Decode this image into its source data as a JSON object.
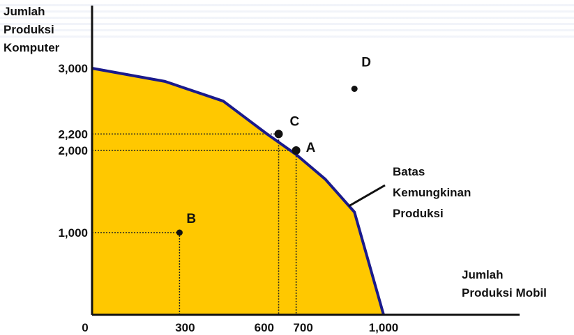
{
  "chart_data": {
    "type": "line",
    "ylabel_lines": [
      "Jumlah",
      "Produksi",
      "Komputer"
    ],
    "xlabel_lines": [
      "Jumlah",
      "Produksi Mobil"
    ],
    "curve_label_lines": [
      "Batas",
      "Kemungkinan",
      "Produksi"
    ],
    "x_ticks": [
      "0",
      "300",
      "600",
      "700",
      "1,000"
    ],
    "y_ticks": [
      "1,000",
      "2,000",
      "2,200",
      "3,000"
    ],
    "ppf": {
      "x": [
        0,
        250,
        450,
        600,
        700,
        800,
        900,
        1000
      ],
      "y": [
        3000,
        2840,
        2600,
        2200,
        1950,
        1650,
        1250,
        0
      ]
    },
    "points": [
      {
        "label": "A",
        "x": 700,
        "y": 2000
      },
      {
        "label": "B",
        "x": 300,
        "y": 1000
      },
      {
        "label": "C",
        "x": 640,
        "y": 2200
      },
      {
        "label": "D",
        "x": 900,
        "y": 2750
      }
    ],
    "fill_color": "#FFC800",
    "curve_color": "#1A1A8C"
  }
}
